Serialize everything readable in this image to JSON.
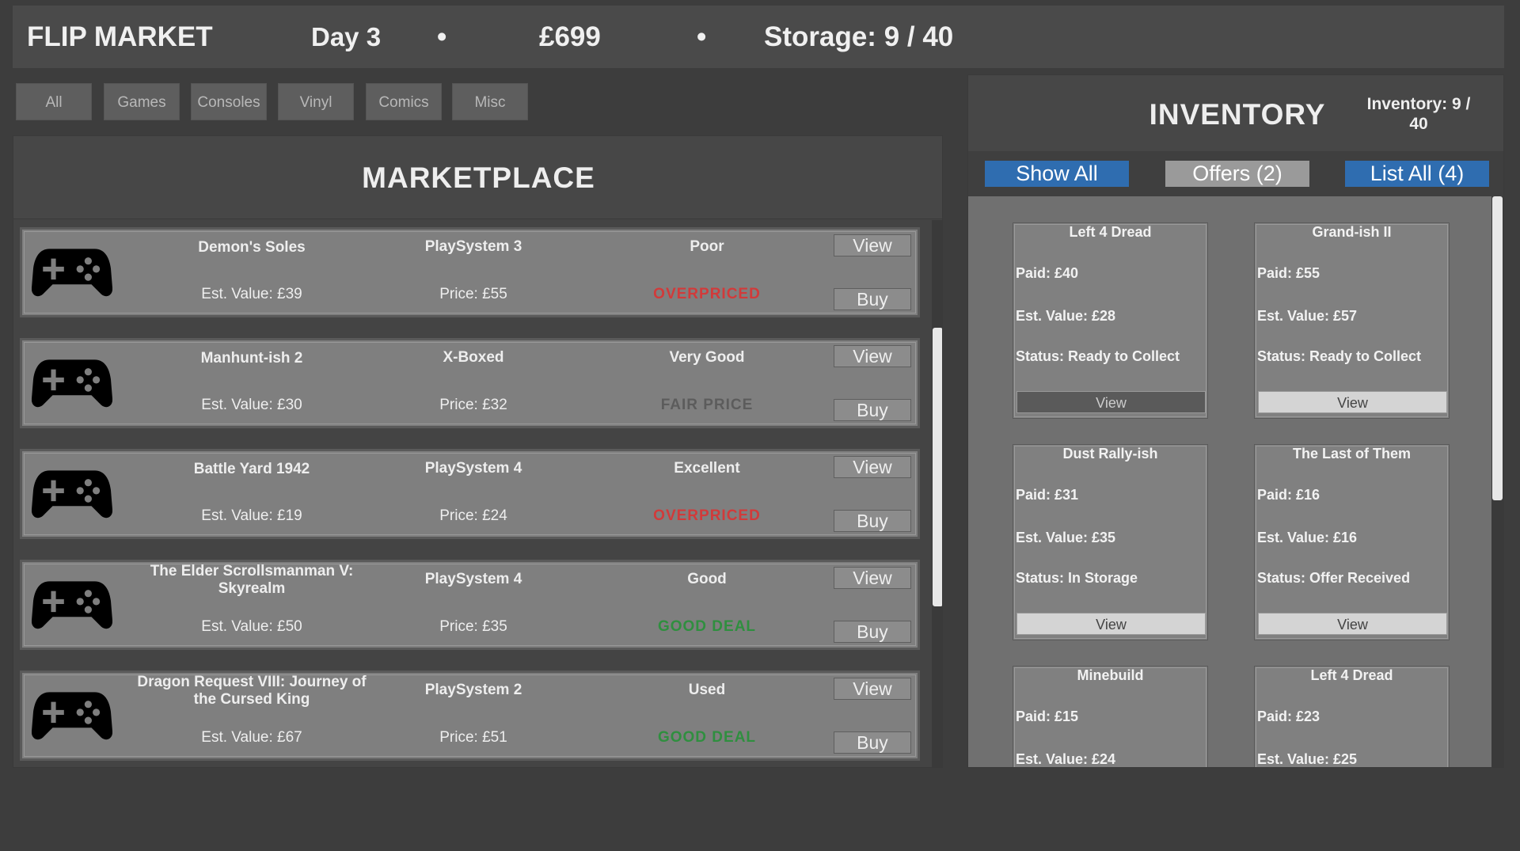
{
  "header": {
    "title": "FLIP MARKET",
    "day": "Day 3",
    "separator": "•",
    "money": "£699",
    "storage": "Storage: 9 / 40"
  },
  "filters": [
    "All",
    "Games",
    "Consoles",
    "Vinyl",
    "Comics",
    "Misc"
  ],
  "marketplace": {
    "title": "MARKETPLACE",
    "view_label": "View",
    "buy_label": "Buy",
    "listings": [
      {
        "name": "Demon's Soles",
        "platform": "PlaySystem 3",
        "condition": "Poor",
        "est_value": "Est. Value: £39",
        "price": "Price: £55",
        "deal": "OVERPRICED",
        "deal_color": "#d23a3a"
      },
      {
        "name": "Manhunt-ish 2",
        "platform": "X-Boxed",
        "condition": "Very Good",
        "est_value": "Est. Value: £30",
        "price": "Price: £32",
        "deal": "FAIR PRICE",
        "deal_color": "#5c5c5c"
      },
      {
        "name": "Battle Yard 1942",
        "platform": "PlaySystem 4",
        "condition": "Excellent",
        "est_value": "Est. Value: £19",
        "price": "Price: £24",
        "deal": "OVERPRICED",
        "deal_color": "#d23a3a"
      },
      {
        "name": "The Elder Scrollsmanman V: Skyrealm",
        "platform": "PlaySystem 4",
        "condition": "Good",
        "est_value": "Est. Value: £50",
        "price": "Price: £35",
        "deal": "GOOD DEAL",
        "deal_color": "#2f8f3f"
      },
      {
        "name": "Dragon Request VIII: Journey of the Cursed King",
        "platform": "PlaySystem 2",
        "condition": "Used",
        "est_value": "Est. Value: £67",
        "price": "Price: £51",
        "deal": "GOOD DEAL",
        "deal_color": "#2f8f3f"
      }
    ]
  },
  "inventory": {
    "title": "INVENTORY",
    "count": "Inventory: 9 / 40",
    "tabs": [
      "Show All",
      "Offers (2)",
      "List All (4)"
    ],
    "view_label": "View",
    "items": [
      {
        "name": "Left 4 Dread",
        "paid": "Paid: £40",
        "est_value": "Est. Value: £28",
        "status": "Status: Ready to Collect"
      },
      {
        "name": "Grand-ish II",
        "paid": "Paid: £55",
        "est_value": "Est. Value: £57",
        "status": "Status: Ready to Collect"
      },
      {
        "name": "Dust Rally-ish",
        "paid": "Paid: £31",
        "est_value": "Est. Value: £35",
        "status": "Status: In Storage"
      },
      {
        "name": "The Last of Them",
        "paid": "Paid: £16",
        "est_value": "Est. Value: £16",
        "status": "Status: Offer Received"
      },
      {
        "name": "Minebuild",
        "paid": "Paid: £15",
        "est_value": "Est. Value: £24"
      },
      {
        "name": "Left 4 Dread",
        "paid": "Paid: £23",
        "est_value": "Est. Value: £25"
      }
    ]
  }
}
